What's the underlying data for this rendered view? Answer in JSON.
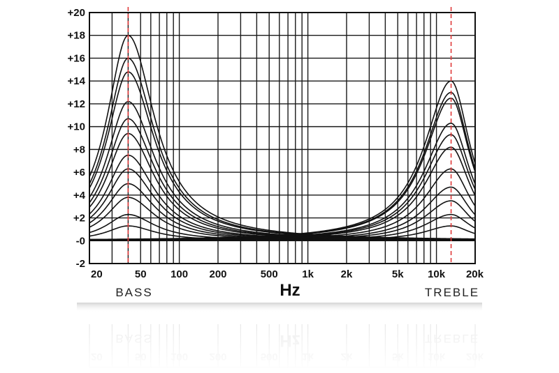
{
  "chart_data": {
    "type": "line",
    "title": "",
    "xlabel": "Hz",
    "ylabel": "",
    "x_scale": "log",
    "xlim": [
      20,
      20000
    ],
    "ylim": [
      -2,
      20
    ],
    "grid": true,
    "x_tick_labels": [
      {
        "value": 20,
        "label": "20"
      },
      {
        "value": 50,
        "label": "50"
      },
      {
        "value": 100,
        "label": "100"
      },
      {
        "value": 200,
        "label": "200"
      },
      {
        "value": 500,
        "label": "500"
      },
      {
        "value": 1000,
        "label": "1k"
      },
      {
        "value": 2000,
        "label": "2k"
      },
      {
        "value": 5000,
        "label": "5k"
      },
      {
        "value": 10000,
        "label": "10k"
      },
      {
        "value": 20000,
        "label": "20k"
      }
    ],
    "y_tick_labels": [
      {
        "value": 20,
        "label": "+20"
      },
      {
        "value": 18,
        "label": "+18"
      },
      {
        "value": 16,
        "label": "+16"
      },
      {
        "value": 14,
        "label": "+14"
      },
      {
        "value": 12,
        "label": "+12"
      },
      {
        "value": 10,
        "label": "+10"
      },
      {
        "value": 8,
        "label": "+8"
      },
      {
        "value": 6,
        "label": "+6"
      },
      {
        "value": 4,
        "label": "+4"
      },
      {
        "value": 2,
        "label": "+2"
      },
      {
        "value": 0,
        "label": "-0"
      },
      {
        "value": -2,
        "label": "-2"
      }
    ],
    "x_gridlines": [
      20,
      30,
      40,
      50,
      60,
      70,
      80,
      90,
      100,
      200,
      300,
      400,
      500,
      600,
      700,
      800,
      900,
      1000,
      2000,
      3000,
      4000,
      5000,
      6000,
      7000,
      8000,
      9000,
      10000,
      20000
    ],
    "markers": [
      {
        "name": "bass-marker",
        "x": 40,
        "label": "BASS",
        "color": "#e03a3a"
      },
      {
        "name": "treble-marker",
        "x": 13000,
        "label": "TREBLE",
        "color": "#e03a3a"
      }
    ],
    "bass_center_hz": 40,
    "treble_center_hz": 13000,
    "bass_gains": [
      1.3,
      2.3,
      3.8,
      5.0,
      6.3,
      7.5,
      9.4,
      10.7,
      12.2,
      14.8,
      16.0,
      18.0
    ],
    "treble_gains": [
      1.3,
      2.3,
      3.5,
      4.7,
      6.3,
      8.2,
      9.3,
      10.3,
      12.5,
      13.0,
      14.0
    ],
    "line_color": "#111111",
    "marker_color": "#e03a3a"
  }
}
